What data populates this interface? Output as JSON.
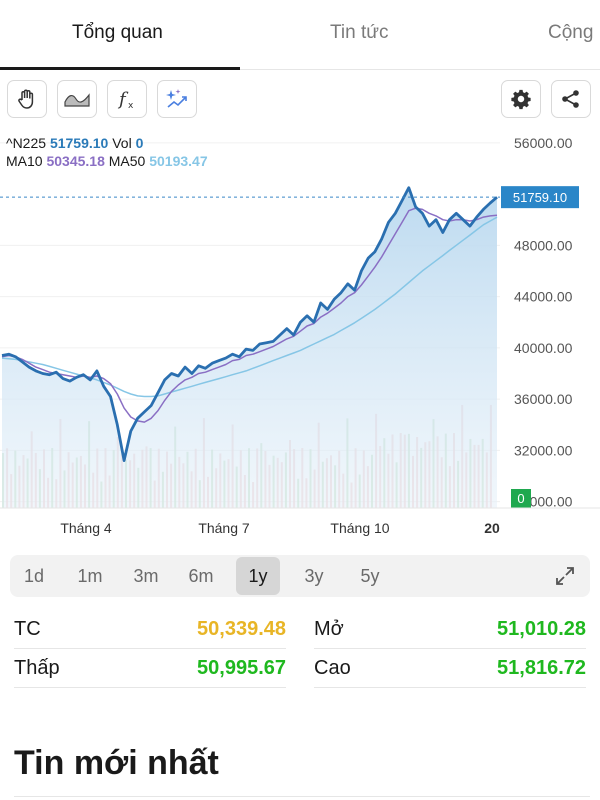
{
  "tabs": [
    {
      "label": "Tổng quan",
      "active": true
    },
    {
      "label": "Tin tức",
      "active": false
    },
    {
      "label": "Cộng",
      "active": false
    }
  ],
  "tools": {
    "left": [
      "hand-drawing-icon",
      "area-chart-icon",
      "function-icon",
      "ai-sparkle-icon"
    ],
    "right": [
      "gear-icon",
      "share-icon"
    ]
  },
  "chart_data": {
    "type": "line",
    "symbol": "^N225",
    "price": "51759.10",
    "vol_label": "Vol",
    "vol": "0",
    "ma10_label": "MA10",
    "ma10": "50345.18",
    "ma50_label": "MA50",
    "ma50": "50193.47",
    "current_label": "51759.10",
    "volume_badge": "0",
    "y_ticks": [
      "56000.00",
      "48000.00",
      "44000.00",
      "40000.00",
      "36000.00",
      "32000.00",
      "28000.00"
    ],
    "ylim": [
      27500,
      57000
    ],
    "x_ticks": [
      "Tháng 4",
      "Tháng 7",
      "Tháng 10",
      "20"
    ],
    "colors": {
      "price": "#2a6fb0",
      "ma10": "#8a6fc4",
      "ma50": "#86c6e6",
      "fill": "#c9e1f2"
    },
    "series": [
      {
        "name": "^N225",
        "values": [
          39400,
          39500,
          39300,
          38900,
          38500,
          38200,
          38000,
          37900,
          38100,
          37600,
          37400,
          37700,
          37900,
          37500,
          38200,
          37000,
          36200,
          34000,
          31200,
          33500,
          34500,
          35000,
          35500,
          36500,
          37500,
          38000,
          37800,
          38500,
          38000,
          38600,
          38400,
          38800,
          39000,
          39200,
          39500,
          39300,
          39900,
          39800,
          40300,
          40400,
          40500,
          41000,
          41500,
          41000,
          42000,
          42500,
          42000,
          43500,
          43000,
          43800,
          44300,
          45000,
          44500,
          46000,
          47000,
          47500,
          48500,
          49800,
          50500,
          51500,
          52500,
          51000,
          50500,
          49500,
          50000,
          49000,
          50000,
          50500,
          50000,
          49500,
          50200,
          50800,
          51300,
          51759
        ]
      },
      {
        "name": "MA10",
        "values": [
          39300,
          39400,
          39300,
          39100,
          38800,
          38500,
          38300,
          38100,
          38000,
          37900,
          37800,
          37700,
          37800,
          37700,
          37800,
          37600,
          37200,
          36400,
          35300,
          34600,
          34300,
          34200,
          34500,
          35100,
          35900,
          36600,
          37100,
          37500,
          37700,
          38000,
          38100,
          38300,
          38500,
          38700,
          39000,
          39100,
          39400,
          39500,
          39700,
          39900,
          40100,
          40400,
          40700,
          40900,
          41300,
          41700,
          41900,
          42400,
          42700,
          43100,
          43500,
          44000,
          44300,
          44900,
          45600,
          46300,
          47100,
          48000,
          48900,
          49800,
          50700,
          50900,
          50800,
          50500,
          50300,
          50000,
          49900,
          50000,
          50000,
          49900,
          50000,
          50200,
          50300,
          50345
        ]
      },
      {
        "name": "MA50",
        "values": [
          39200,
          39150,
          39100,
          39000,
          38900,
          38800,
          38700,
          38550,
          38400,
          38250,
          38100,
          37950,
          37800,
          37650,
          37500,
          37300,
          37100,
          36850,
          36600,
          36400,
          36250,
          36200,
          36200,
          36250,
          36400,
          36550,
          36700,
          36850,
          37000,
          37150,
          37300,
          37450,
          37600,
          37750,
          37900,
          38050,
          38200,
          38400,
          38600,
          38800,
          39000,
          39200,
          39400,
          39600,
          39800,
          40050,
          40300,
          40550,
          40800,
          41050,
          41350,
          41650,
          41950,
          42300,
          42650,
          43000,
          43400,
          43800,
          44200,
          44650,
          45100,
          45550,
          46000,
          46400,
          46800,
          47200,
          47600,
          48000,
          48400,
          48800,
          49200,
          49600,
          49900,
          50193
        ]
      }
    ]
  },
  "range": {
    "options": [
      "1d",
      "1m",
      "3m",
      "6m",
      "1y",
      "3y",
      "5y"
    ],
    "active": "1y"
  },
  "stats": {
    "tc_label": "TC",
    "tc_value": "50,339.48",
    "tc_color": "#e8b526",
    "open_label": "Mở",
    "open_value": "51,010.28",
    "low_label": "Thấp",
    "low_value": "50,995.67",
    "high_label": "Cao",
    "high_value": "51,816.72",
    "up_color": "#1fb81f"
  },
  "news": {
    "title": "Tin mới nhất"
  }
}
